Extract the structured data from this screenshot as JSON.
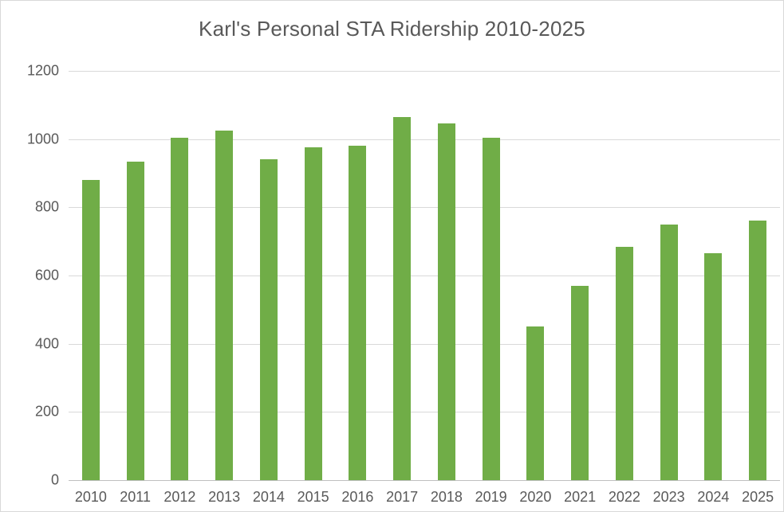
{
  "title": "Karl's Personal STA Ridership 2010-2025",
  "colors": {
    "bar": "#70AD47",
    "gridline": "#D9D9D9",
    "axis_line": "#BFBFBF",
    "text": "#595959",
    "border": "#D9D9D9",
    "background": "#FFFFFF"
  },
  "chart_data": {
    "type": "bar",
    "title": "Karl's Personal STA Ridership 2010-2025",
    "categories": [
      "2010",
      "2011",
      "2012",
      "2013",
      "2014",
      "2015",
      "2016",
      "2017",
      "2018",
      "2019",
      "2020",
      "2021",
      "2022",
      "2023",
      "2024",
      "2025"
    ],
    "values": [
      880,
      935,
      1005,
      1025,
      940,
      975,
      980,
      1065,
      1045,
      1005,
      450,
      570,
      685,
      750,
      665,
      760
    ],
    "xlabel": "",
    "ylabel": "",
    "ylim": [
      0,
      1200
    ],
    "yticks": [
      0,
      200,
      400,
      600,
      800,
      1000,
      1200
    ],
    "grid": true,
    "legend": false,
    "bar_color": "#70AD47"
  }
}
